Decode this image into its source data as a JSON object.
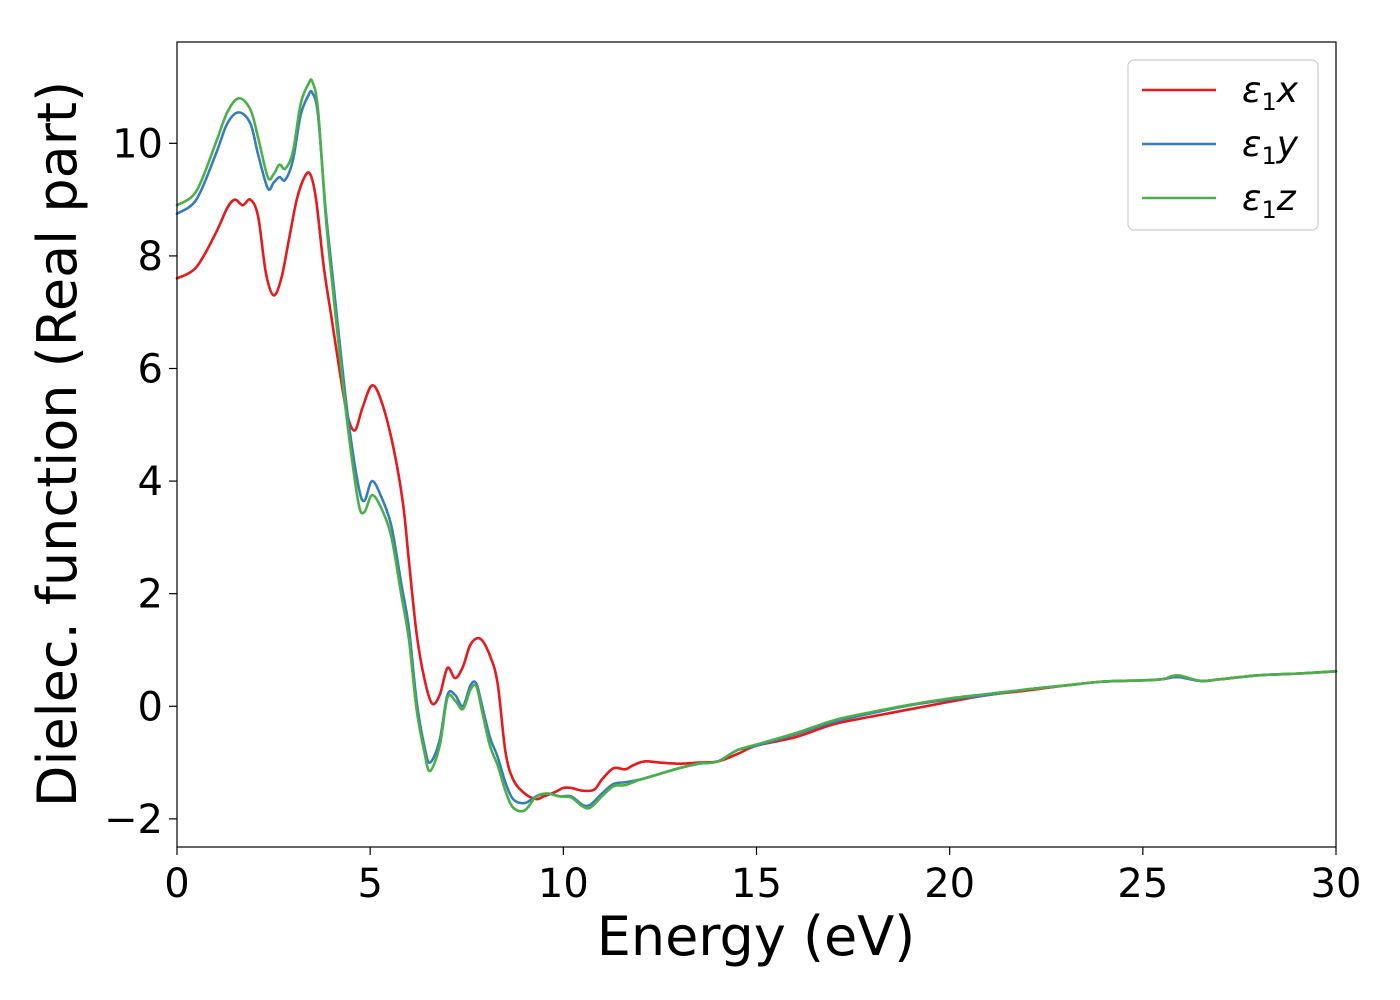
{
  "chart_data": {
    "type": "line",
    "title": "",
    "xlabel": "Energy (eV)",
    "ylabel": "Dielec. function (Real part)",
    "xlim": [
      0,
      30
    ],
    "ylim": [
      -2.5,
      11.8
    ],
    "xticks": [
      0,
      5,
      10,
      15,
      20,
      25,
      30
    ],
    "xtick_labels": [
      "0",
      "5",
      "10",
      "15",
      "20",
      "25",
      "30"
    ],
    "yticks": [
      -2,
      0,
      2,
      4,
      6,
      8,
      10
    ],
    "ytick_labels": [
      "−2",
      "0",
      "2",
      "4",
      "6",
      "8",
      "10"
    ],
    "grid": false,
    "legend_position": "top-right",
    "series": [
      {
        "name": "ε1x",
        "name_base": "ε",
        "name_sub": "1",
        "name_var": "x",
        "color": "#e41a1c",
        "x": [
          0,
          0.5,
          1.0,
          1.3,
          1.5,
          1.7,
          1.9,
          2.1,
          2.3,
          2.5,
          2.7,
          2.9,
          3.1,
          3.3,
          3.45,
          3.6,
          3.8,
          4.0,
          4.2,
          4.4,
          4.6,
          4.8,
          5.05,
          5.3,
          5.6,
          5.85,
          6.0,
          6.2,
          6.4,
          6.6,
          6.8,
          7.0,
          7.2,
          7.4,
          7.6,
          7.85,
          8.1,
          8.3,
          8.5,
          8.7,
          9.0,
          9.3,
          9.5,
          9.8,
          10.0,
          10.2,
          10.5,
          10.8,
          11.0,
          11.3,
          11.6,
          11.8,
          12.1,
          12.5,
          13.0,
          13.5,
          14.0,
          14.5,
          15.0,
          16.0,
          17.0,
          18.0,
          19.0,
          20.0,
          21.0,
          22.0,
          23.0,
          24.0,
          25.0,
          25.5,
          25.9,
          26.5,
          27.0,
          28.0,
          29.0,
          30.0
        ],
        "y": [
          7.6,
          7.8,
          8.4,
          8.85,
          9.0,
          8.9,
          9.0,
          8.7,
          7.7,
          7.3,
          7.6,
          8.3,
          9.0,
          9.4,
          9.45,
          9.0,
          7.8,
          6.9,
          6.0,
          5.2,
          4.9,
          5.3,
          5.7,
          5.4,
          4.6,
          3.6,
          2.6,
          1.3,
          0.5,
          0.05,
          0.2,
          0.68,
          0.5,
          0.7,
          1.1,
          1.2,
          0.9,
          0.4,
          -0.8,
          -1.3,
          -1.55,
          -1.65,
          -1.6,
          -1.52,
          -1.45,
          -1.45,
          -1.5,
          -1.48,
          -1.3,
          -1.1,
          -1.12,
          -1.05,
          -0.98,
          -1.0,
          -1.02,
          -1.0,
          -0.98,
          -0.85,
          -0.7,
          -0.55,
          -0.32,
          -0.18,
          -0.05,
          0.08,
          0.2,
          0.28,
          0.37,
          0.44,
          0.46,
          0.48,
          0.52,
          0.45,
          0.48,
          0.55,
          0.58,
          0.62
        ]
      },
      {
        "name": "ε1y",
        "name_base": "ε",
        "name_sub": "1",
        "name_var": "y",
        "color": "#377eb8",
        "x": [
          0,
          0.5,
          1.0,
          1.3,
          1.6,
          1.9,
          2.1,
          2.35,
          2.5,
          2.65,
          2.8,
          3.0,
          3.2,
          3.4,
          3.5,
          3.65,
          3.85,
          4.05,
          4.25,
          4.45,
          4.7,
          4.85,
          5.05,
          5.3,
          5.55,
          5.8,
          6.0,
          6.2,
          6.4,
          6.55,
          6.8,
          7.0,
          7.2,
          7.4,
          7.6,
          7.75,
          7.9,
          8.1,
          8.3,
          8.5,
          8.7,
          9.0,
          9.3,
          9.6,
          9.9,
          10.2,
          10.5,
          10.7,
          11.0,
          11.3,
          11.6,
          12.0,
          12.5,
          13.0,
          13.5,
          14.0,
          14.5,
          15.0,
          16.0,
          17.0,
          18.0,
          19.0,
          20.0,
          21.0,
          22.0,
          23.0,
          24.0,
          25.0,
          25.5,
          25.9,
          26.5,
          27.0,
          28.0,
          29.0,
          30.0
        ],
        "y": [
          8.75,
          9.0,
          9.8,
          10.35,
          10.55,
          10.35,
          9.8,
          9.2,
          9.3,
          9.4,
          9.35,
          9.7,
          10.5,
          10.85,
          10.9,
          10.5,
          8.8,
          7.5,
          6.2,
          5.0,
          3.9,
          3.65,
          4.0,
          3.7,
          3.2,
          2.2,
          1.4,
          0.1,
          -0.7,
          -1.0,
          -0.6,
          0.2,
          0.2,
          0.0,
          0.38,
          0.4,
          0.0,
          -0.55,
          -0.9,
          -1.35,
          -1.65,
          -1.72,
          -1.6,
          -1.55,
          -1.6,
          -1.6,
          -1.75,
          -1.75,
          -1.55,
          -1.38,
          -1.35,
          -1.3,
          -1.2,
          -1.1,
          -1.02,
          -0.98,
          -0.78,
          -0.7,
          -0.5,
          -0.28,
          -0.12,
          0.02,
          0.12,
          0.2,
          0.3,
          0.37,
          0.44,
          0.46,
          0.48,
          0.52,
          0.45,
          0.48,
          0.55,
          0.58,
          0.62
        ]
      },
      {
        "name": "ε1z",
        "name_base": "ε",
        "name_sub": "1",
        "name_var": "z",
        "color": "#4daf4a",
        "x": [
          0,
          0.5,
          1.0,
          1.3,
          1.6,
          1.9,
          2.1,
          2.35,
          2.5,
          2.65,
          2.8,
          3.0,
          3.2,
          3.4,
          3.5,
          3.65,
          3.85,
          4.05,
          4.25,
          4.45,
          4.7,
          4.85,
          5.05,
          5.3,
          5.55,
          5.8,
          6.0,
          6.2,
          6.4,
          6.55,
          6.8,
          7.0,
          7.2,
          7.4,
          7.6,
          7.75,
          7.9,
          8.1,
          8.3,
          8.5,
          8.7,
          9.0,
          9.3,
          9.6,
          9.9,
          10.2,
          10.5,
          10.7,
          11.0,
          11.3,
          11.6,
          12.0,
          12.5,
          13.0,
          13.5,
          14.0,
          14.5,
          15.0,
          16.0,
          17.0,
          18.0,
          19.0,
          20.0,
          21.0,
          22.0,
          23.0,
          24.0,
          25.0,
          25.5,
          25.9,
          26.5,
          27.0,
          28.0,
          29.0,
          30.0
        ],
        "y": [
          8.9,
          9.15,
          10.0,
          10.55,
          10.8,
          10.6,
          10.1,
          9.4,
          9.45,
          9.62,
          9.55,
          9.85,
          10.7,
          11.05,
          11.1,
          10.6,
          8.7,
          7.3,
          6.0,
          4.8,
          3.6,
          3.45,
          3.75,
          3.5,
          3.0,
          2.0,
          1.2,
          -0.05,
          -0.8,
          -1.15,
          -0.7,
          0.15,
          0.1,
          -0.05,
          0.3,
          0.35,
          -0.1,
          -0.7,
          -1.05,
          -1.5,
          -1.8,
          -1.85,
          -1.6,
          -1.55,
          -1.6,
          -1.62,
          -1.78,
          -1.8,
          -1.6,
          -1.42,
          -1.4,
          -1.3,
          -1.2,
          -1.1,
          -1.02,
          -0.98,
          -0.78,
          -0.68,
          -0.48,
          -0.25,
          -0.1,
          0.03,
          0.14,
          0.22,
          0.3,
          0.37,
          0.44,
          0.46,
          0.48,
          0.55,
          0.45,
          0.48,
          0.55,
          0.58,
          0.62
        ]
      }
    ]
  }
}
